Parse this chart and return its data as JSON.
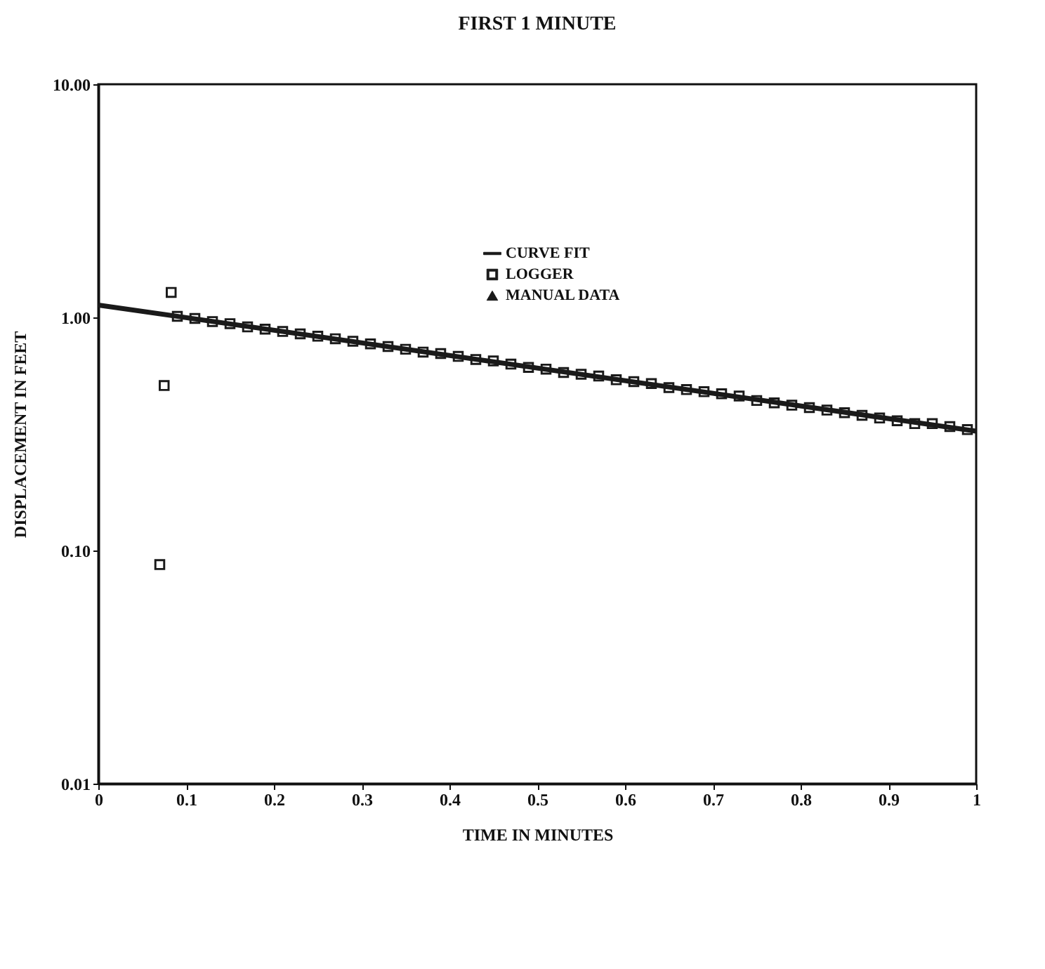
{
  "chart_data": {
    "type": "scatter",
    "title": "FIRST 1 MINUTE",
    "xlabel": "TIME IN MINUTES",
    "ylabel": "DISPLACEMENT IN FEET",
    "log": "y",
    "legend": "top right",
    "grid": false,
    "xlim": [
      0,
      1
    ],
    "xticks": [
      0,
      {
        "value": 0.1,
        "label": "0.1"
      },
      {
        "value": 0.2,
        "label": "0.2"
      },
      {
        "value": 0.3,
        "label": "0.3"
      },
      {
        "value": 0.4,
        "label": "0.4"
      },
      {
        "value": 0.5,
        "label": "0.5"
      },
      {
        "value": 0.6,
        "label": "0.6"
      },
      {
        "value": 0.7,
        "label": "0.7"
      },
      {
        "value": 0.8,
        "label": "0.8"
      },
      {
        "value": 0.9,
        "label": "0.9"
      },
      1
    ],
    "ylim": [
      0.01,
      10
    ],
    "yticks": [
      {
        "value": 0.01,
        "label": "0.01"
      },
      {
        "value": 0.1,
        "label": "0.10"
      },
      {
        "value": 1,
        "label": "1.00"
      },
      {
        "value": 10,
        "label": "10.00"
      }
    ],
    "series": [
      {
        "name": "CURVE FIT",
        "type": "line",
        "color": "#1a1a1a",
        "x": [
          0,
          1
        ],
        "values": [
          1.13,
          0.325
        ]
      },
      {
        "name": "LOGGER",
        "marker": "square",
        "color": "#1a1a1a",
        "x": [
          0.07,
          0.075,
          0.083,
          0.09,
          0.11,
          0.13,
          0.15,
          0.17,
          0.19,
          0.21,
          0.23,
          0.25,
          0.27,
          0.29,
          0.31,
          0.33,
          0.35,
          0.37,
          0.39,
          0.41,
          0.43,
          0.45,
          0.47,
          0.49,
          0.51,
          0.53,
          0.55,
          0.57,
          0.59,
          0.61,
          0.63,
          0.65,
          0.67,
          0.69,
          0.71,
          0.73,
          0.75,
          0.77,
          0.79,
          0.81,
          0.83,
          0.85,
          0.87,
          0.89,
          0.91,
          0.93,
          0.95,
          0.97,
          0.99
        ],
        "values": [
          0.087,
          0.51,
          1.28,
          1.01,
          0.99,
          0.96,
          0.94,
          0.91,
          0.89,
          0.87,
          0.85,
          0.83,
          0.81,
          0.79,
          0.77,
          0.75,
          0.73,
          0.71,
          0.7,
          0.68,
          0.66,
          0.65,
          0.63,
          0.61,
          0.6,
          0.58,
          0.57,
          0.56,
          0.54,
          0.53,
          0.52,
          0.5,
          0.49,
          0.48,
          0.47,
          0.46,
          0.44,
          0.43,
          0.42,
          0.41,
          0.4,
          0.39,
          0.38,
          0.37,
          0.36,
          0.35,
          0.35,
          0.34,
          0.33
        ]
      },
      {
        "name": "MANUAL DATA",
        "type": "scatter",
        "marker": "triangle",
        "color": "#1a1a1a"
      }
    ]
  }
}
